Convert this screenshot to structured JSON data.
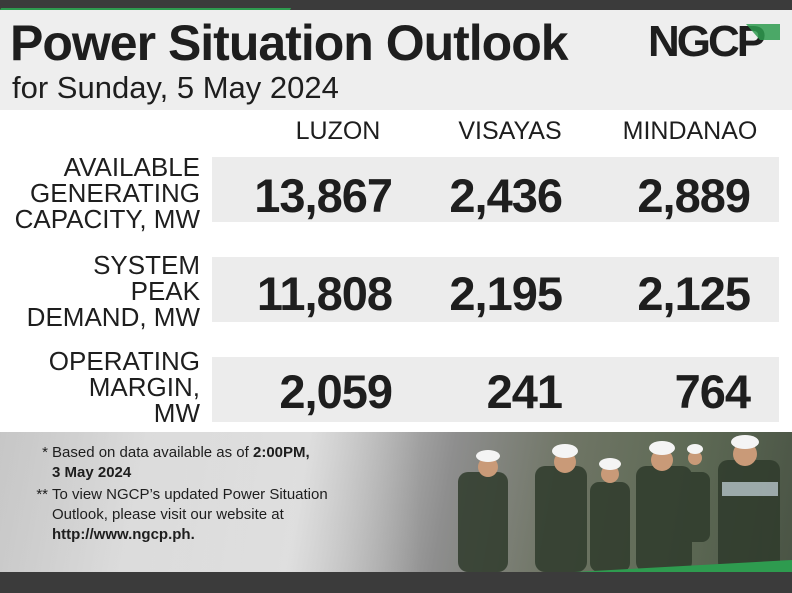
{
  "header": {
    "title": "Power Situation Outlook",
    "subtitle": "for Sunday, 5 May 2024",
    "logo_text": "NGCP"
  },
  "columns": [
    "LUZON",
    "VISAYAS",
    "MINDANAO"
  ],
  "rows": [
    {
      "label_lines": [
        "AVAILABLE",
        "GENERATING",
        "CAPACITY, MW"
      ],
      "values": [
        "13,867",
        "2,436",
        "2,889"
      ]
    },
    {
      "label_lines": [
        "SYSTEM",
        "PEAK",
        "DEMAND, MW"
      ],
      "values": [
        "11,808",
        "2,195",
        "2,125"
      ]
    },
    {
      "label_lines": [
        "OPERATING",
        "MARGIN,",
        "MW"
      ],
      "values": [
        "2,059",
        "241",
        "764"
      ]
    }
  ],
  "notes": {
    "n1_marker": "*",
    "n1_text": "Based on data available as of ",
    "n1_bold": "2:00PM,",
    "n1_bold2": "3 May 2024",
    "n2_marker": "**",
    "n2_text1": "To view NGCP’s updated Power Situation",
    "n2_text2": "Outlook, please visit our website at",
    "n2_link": "http://www.ngcp.ph."
  },
  "colors": {
    "brand_green": "#2e9b4f",
    "dark_bar": "#3b3b3b",
    "row_bg": "#ececec"
  }
}
